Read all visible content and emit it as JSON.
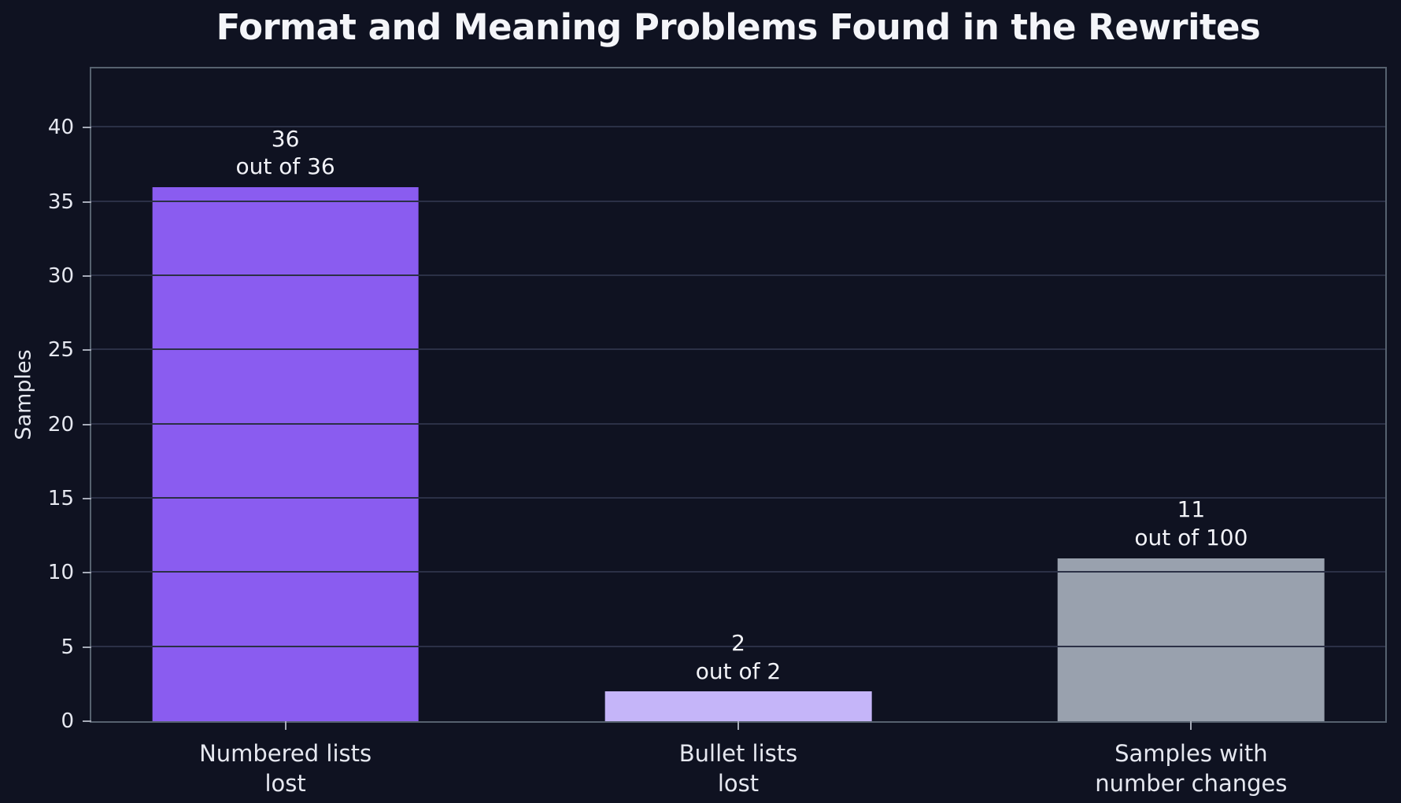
{
  "theme": {
    "background": "#0f1221",
    "grid_color": "#2b3046",
    "spine_color": "#56616f",
    "tick_color": "#a6abb8",
    "text_color": "#e6e8f0",
    "title_color": "#f4f5f9"
  },
  "chart_data": {
    "type": "bar",
    "title": "Format and Meaning Problems Found in the Rewrites",
    "xlabel": "",
    "ylabel": "Samples",
    "ylim": [
      0,
      44
    ],
    "yticks": [
      0,
      5,
      10,
      15,
      20,
      25,
      30,
      35,
      40
    ],
    "grid": true,
    "grid_over_bars": true,
    "legend": false,
    "categories": [
      "Numbered lists lost",
      "Bullet lists lost",
      "Samples with number changes"
    ],
    "values": [
      36,
      2,
      11
    ],
    "bars": [
      {
        "category_lines": [
          "Numbered lists",
          "lost"
        ],
        "value": 36,
        "annotation_lines": [
          "36",
          "out of 36"
        ],
        "color": "#8a5cf0"
      },
      {
        "category_lines": [
          "Bullet lists",
          "lost"
        ],
        "value": 2,
        "annotation_lines": [
          "2",
          "out of 2"
        ],
        "color": "#c5b5f9"
      },
      {
        "category_lines": [
          "Samples with",
          "number changes"
        ],
        "value": 11,
        "annotation_lines": [
          "11",
          "out of 100"
        ],
        "color": "#99a1ae"
      }
    ]
  }
}
